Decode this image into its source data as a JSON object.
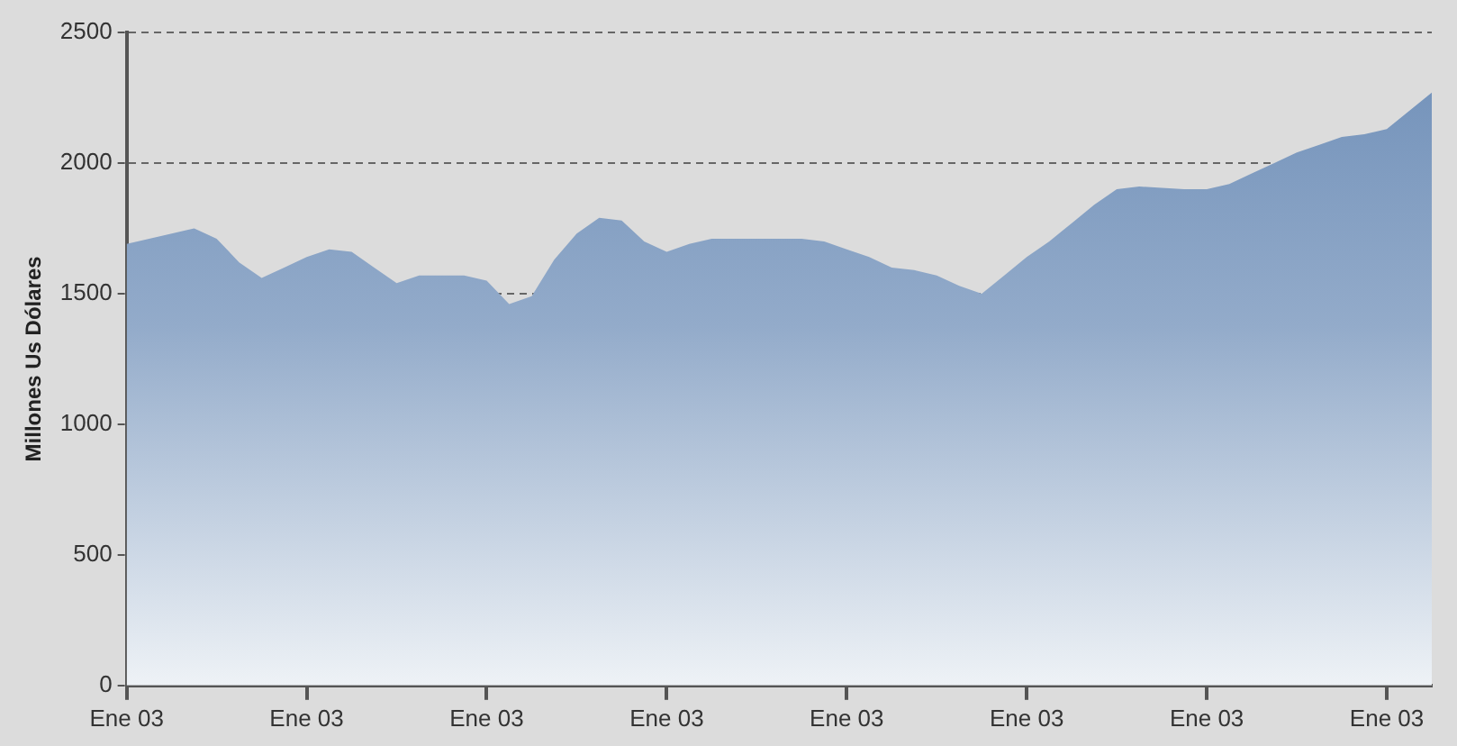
{
  "chart_data": {
    "type": "area",
    "ylabel": "Millones Us Dólares",
    "categories": [
      "Ene 03",
      null,
      null,
      null,
      null,
      null,
      null,
      null,
      "Ene 03",
      null,
      null,
      null,
      null,
      null,
      null,
      null,
      "Ene 03",
      null,
      null,
      null,
      null,
      null,
      null,
      null,
      "Ene 03",
      null,
      null,
      null,
      null,
      null,
      null,
      null,
      "Ene 03",
      null,
      null,
      null,
      null,
      null,
      null,
      null,
      "Ene 03",
      null,
      null,
      null,
      null,
      null,
      null,
      null,
      "Ene 03",
      null,
      null,
      null,
      null,
      null,
      null,
      null,
      "Ene 03",
      null,
      null
    ],
    "series": [
      {
        "color": "#6f8fb8",
        "values": [
          1690,
          1710,
          1730,
          1750,
          1710,
          1620,
          1560,
          1600,
          1640,
          1670,
          1660,
          1600,
          1540,
          1570,
          1570,
          1570,
          1550,
          1460,
          1490,
          1630,
          1730,
          1790,
          1780,
          1700,
          1660,
          1690,
          1710,
          1710,
          1710,
          1710,
          1710,
          1700,
          1670,
          1640,
          1600,
          1590,
          1570,
          1530,
          1500,
          1570,
          1640,
          1700,
          1770,
          1840,
          1900,
          1910,
          1905,
          1900,
          1900,
          1920,
          1960,
          2000,
          2040,
          2070,
          2100,
          2110,
          2130,
          2200,
          2270
        ]
      }
    ],
    "ylim": [
      0,
      2500
    ],
    "yticks": [
      0,
      500,
      1000,
      1500,
      2000,
      2500
    ],
    "grid": "y",
    "line_style": "dashed",
    "legend": false,
    "marker": "none"
  }
}
